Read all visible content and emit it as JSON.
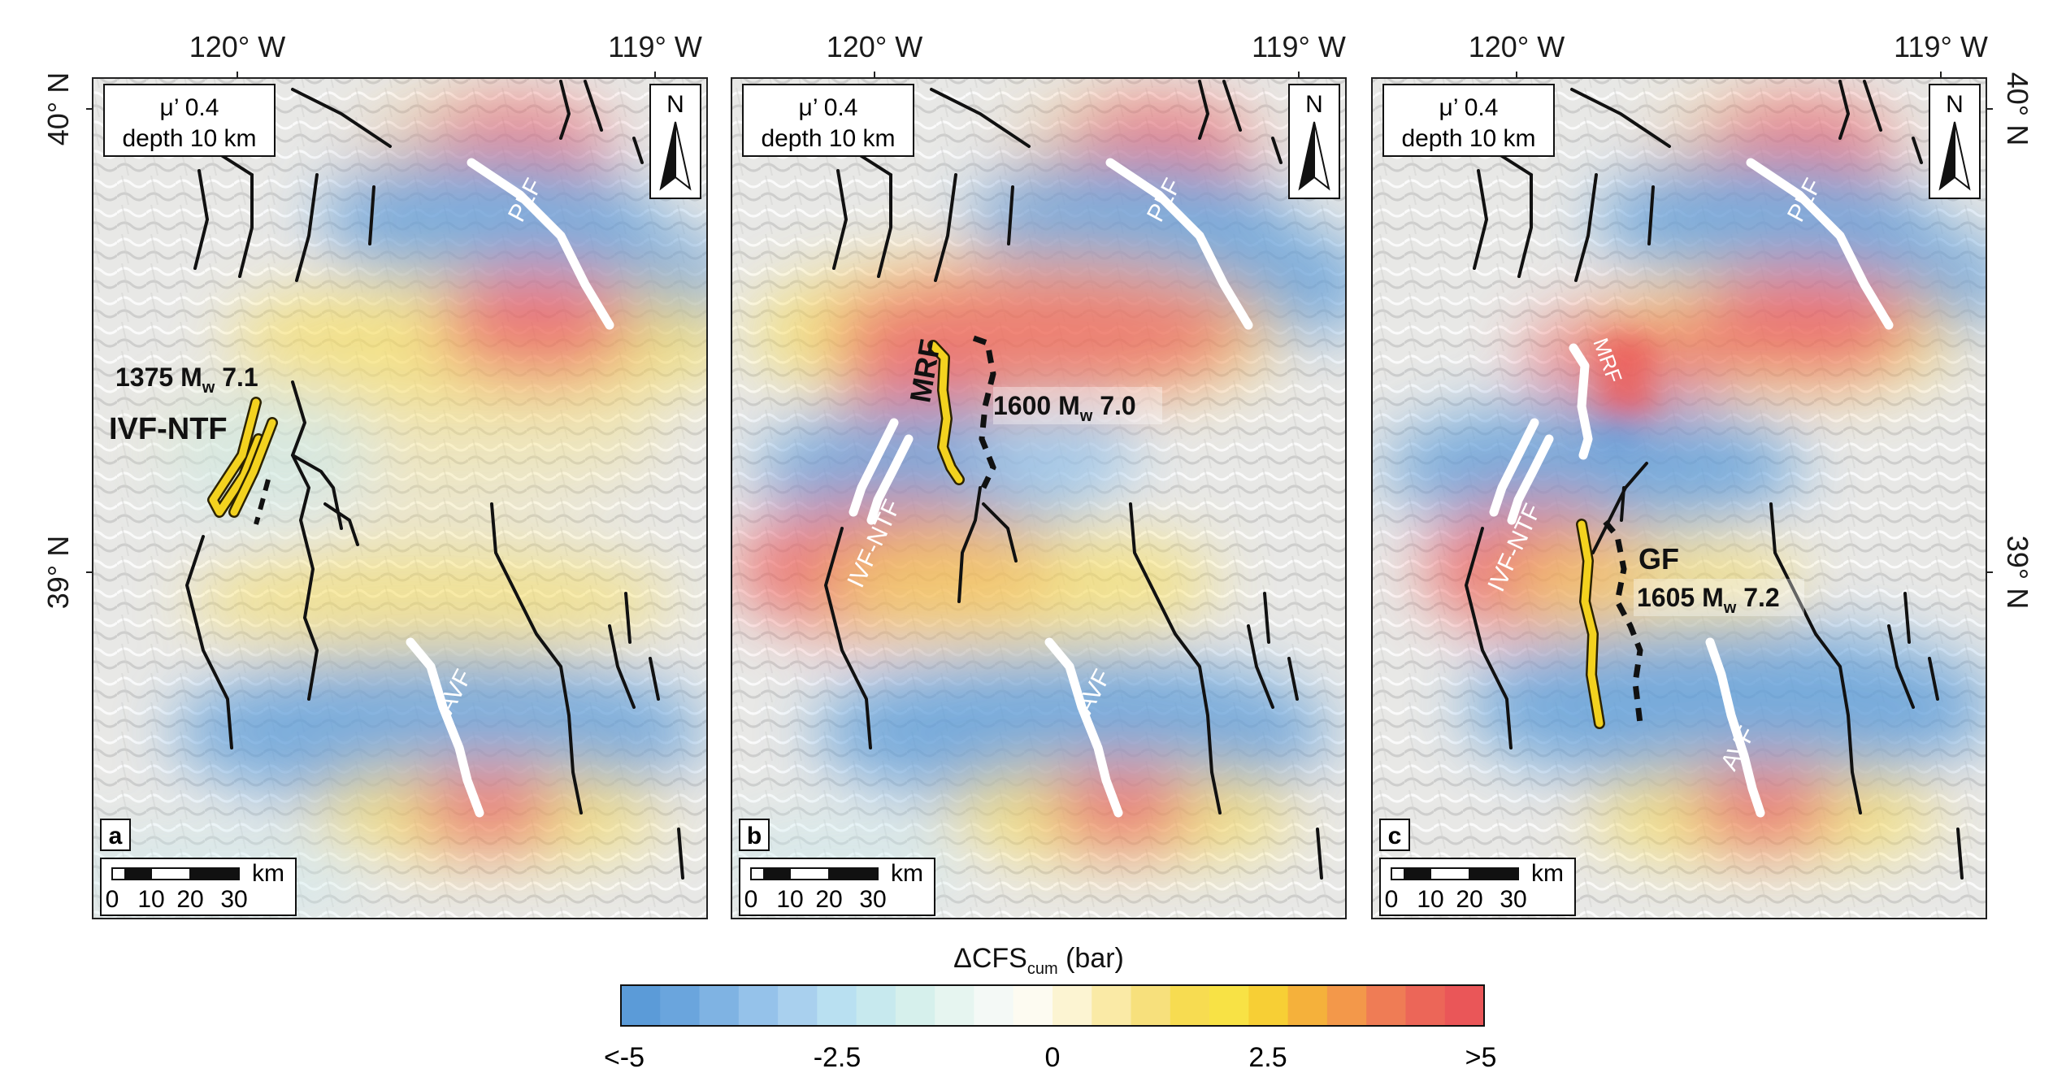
{
  "coordinates": {
    "lon_left": "120° W",
    "lon_right": "119° W",
    "lat_top": "40° N",
    "lat_mid": "39° N"
  },
  "panels": [
    {
      "panel_letter": "a",
      "param_line1": "μ’ 0.4",
      "param_line2": "depth 10 km",
      "north_label": "N",
      "scale_unit": "km",
      "scale_ticks": [
        "0",
        "10",
        "20",
        "30"
      ],
      "fault_labels": [
        "PLF",
        "AVF"
      ],
      "event_year_mag": "1375 M",
      "event_sub": "w",
      "event_mag": " 7.1",
      "event_fault": "IVF-NTF"
    },
    {
      "panel_letter": "b",
      "param_line1": "μ’ 0.4",
      "param_line2": "depth 10 km",
      "north_label": "N",
      "scale_unit": "km",
      "scale_ticks": [
        "0",
        "10",
        "20",
        "30"
      ],
      "fault_labels": [
        "PLF",
        "IVF-NTF",
        "AVF"
      ],
      "event_year_mag": "1600 M",
      "event_sub": "w",
      "event_mag": " 7.0",
      "event_fault": "MRF"
    },
    {
      "panel_letter": "c",
      "param_line1": "μ’ 0.4",
      "param_line2": "depth 10 km",
      "north_label": "N",
      "scale_unit": "km",
      "scale_ticks": [
        "0",
        "10",
        "20",
        "30"
      ],
      "fault_labels": [
        "PLF",
        "MRF",
        "IVF-NTF",
        "AVF"
      ],
      "event_year_mag": "1605 M",
      "event_sub": "w",
      "event_mag": " 7.2",
      "event_fault": "GF"
    }
  ],
  "colorbar": {
    "title_main": "ΔCFS",
    "title_sub": "cum",
    "title_unit": " (bar)",
    "tick_labels": [
      "<-5",
      "-2.5",
      "0",
      "2.5",
      ">5"
    ],
    "colors": [
      "#5b9bd8",
      "#6aa5dd",
      "#7fb3e3",
      "#95c2ea",
      "#a9d0ee",
      "#b9e0f1",
      "#c7e9ee",
      "#d6f0ec",
      "#e6f5f0",
      "#f4f9f6",
      "#fdfbf1",
      "#fcf4d2",
      "#faeaa6",
      "#f7e07c",
      "#f7dc51",
      "#f8e245",
      "#f7cf35",
      "#f5b13b",
      "#f3984a",
      "#ef7c55",
      "#ec6658",
      "#ea5658"
    ]
  }
}
